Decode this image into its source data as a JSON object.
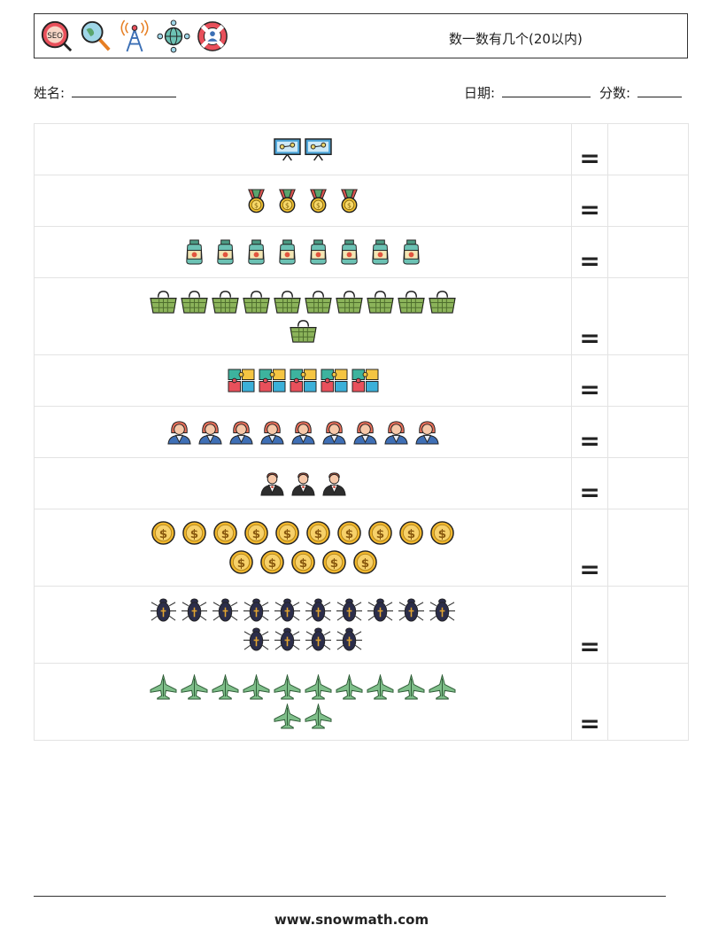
{
  "header": {
    "title": "数一数有几个(20以内)",
    "logos": [
      "seo-magnifier-icon",
      "search-globe-icon",
      "antenna-tower-icon",
      "network-globe-icon",
      "lifebuoy-user-icon"
    ]
  },
  "student": {
    "name_label": "姓名:",
    "date_label": "日期:",
    "score_label": "分数:"
  },
  "equals_sign": "=",
  "rows": [
    {
      "item": "presentation-board",
      "count": 2
    },
    {
      "item": "medal",
      "count": 4
    },
    {
      "item": "jar",
      "count": 8
    },
    {
      "item": "basket",
      "count": 11
    },
    {
      "item": "puzzle",
      "count": 5
    },
    {
      "item": "woman-avatar",
      "count": 9
    },
    {
      "item": "waiter",
      "count": 3
    },
    {
      "item": "coin",
      "count": 15
    },
    {
      "item": "beetle",
      "count": 14
    },
    {
      "item": "jet",
      "count": 12
    }
  ],
  "footer": {
    "website": "www.snowmath.com"
  }
}
